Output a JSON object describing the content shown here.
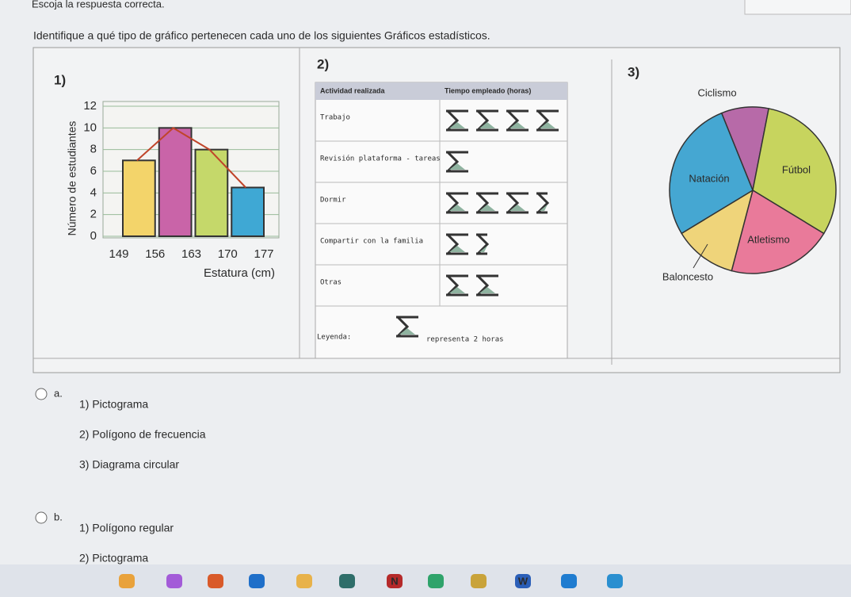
{
  "header": {
    "instruction": "Escoja la respuesta correcta.",
    "question": "Identifique a qué tipo de gráfico pertenecen cada uno de los siguientes Gráficos estadísticos."
  },
  "panel1": {
    "label": "1)",
    "type": "histogram",
    "y_label": "Número de estudiantes",
    "x_label": "Estatura (cm)",
    "bins": [
      149,
      156,
      163,
      170,
      177
    ],
    "counts": [
      7,
      10,
      8,
      4.5
    ],
    "colors": [
      "#f3d46a",
      "#c964a8",
      "#c5d86a",
      "#3fa8d4"
    ],
    "line_color": "#c0452a",
    "ylim": [
      0,
      12
    ],
    "yticks": [
      0,
      2,
      4,
      6,
      8,
      10,
      12
    ],
    "grid": true
  },
  "panel2": {
    "label": "2)",
    "type": "pictogram",
    "headers": [
      "Actividad realizada",
      "Tiempo empleado (horas)"
    ],
    "rows": [
      {
        "activity": "Trabajo",
        "hours": 8
      },
      {
        "activity": "Revisión plataforma - tareas",
        "hours": 2
      },
      {
        "activity": "Dormir",
        "hours": 7
      },
      {
        "activity": "Compartir con la familia",
        "hours": 3
      },
      {
        "activity": "Otras",
        "hours": 4
      }
    ],
    "legend": {
      "title": "Leyenda:",
      "text": "representa 2 horas",
      "hours_per_icon": 2
    }
  },
  "panel3": {
    "label": "3)",
    "type": "pie",
    "slices": [
      {
        "name": "Ciclismo",
        "value": 9,
        "color": "#b76aa8"
      },
      {
        "name": "Fútbol",
        "value": 30,
        "color": "#c7d45e"
      },
      {
        "name": "Atletismo",
        "value": 20,
        "color": "#e97a9a"
      },
      {
        "name": "Baloncesto",
        "value": 12,
        "color": "#efd47a"
      },
      {
        "name": "Natación",
        "value": 27,
        "color": "#45a7d2"
      }
    ]
  },
  "options": [
    {
      "letter": "a.",
      "items": [
        "1)  Pictograma",
        "2)  Polígono de frecuencia",
        "3)  Diagrama circular"
      ]
    },
    {
      "letter": "b.",
      "items": [
        "1)  Polígono regular",
        "2)  Pictograma"
      ]
    }
  ],
  "taskbar": [
    "N",
    "W"
  ]
}
